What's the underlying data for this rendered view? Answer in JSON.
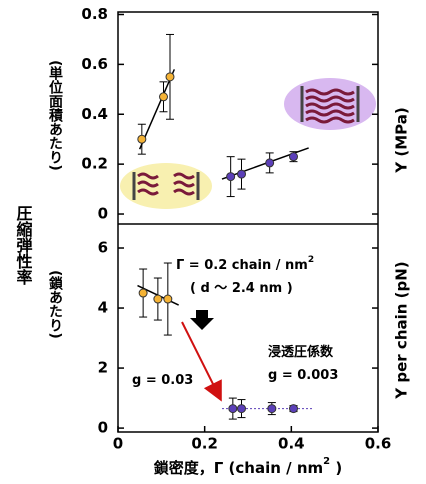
{
  "shared_ylabel": "圧縮弾性率",
  "chart_data": [
    {
      "type": "scatter",
      "ylabel": "(単位面積あたり)",
      "ylabel_right": "Y (MPa)",
      "xlim": [
        0,
        0.6
      ],
      "ylim": [
        -0.04,
        0.81
      ],
      "yticks": [
        0,
        0.2,
        0.4,
        0.6,
        0.8
      ],
      "series": [
        {
          "color": "#f5b335",
          "x": [
            0.055,
            0.105,
            0.12
          ],
          "values": [
            0.3,
            0.47,
            0.55
          ],
          "errors": [
            0.06,
            0.06,
            0.17
          ]
        },
        {
          "color": "#5b3fb8",
          "x": [
            0.26,
            0.285,
            0.35,
            0.405
          ],
          "values": [
            0.15,
            0.16,
            0.205,
            0.23
          ],
          "errors": [
            0.08,
            0.06,
            0.04,
            0.02
          ]
        }
      ],
      "fits": [
        {
          "color": "#000000",
          "dashed": false,
          "x": [
            0.05,
            0.13
          ],
          "values": [
            0.26,
            0.58
          ]
        },
        {
          "color": "#000000",
          "dashed": false,
          "x": [
            0.24,
            0.44
          ],
          "values": [
            0.14,
            0.265
          ]
        }
      ]
    },
    {
      "type": "scatter",
      "ylabel": "(鎖あたり)",
      "ylabel_right": "Y per chain (pN)",
      "xlabel": "鎖密度，Γ (chain / nm",
      "xlabel_sup": "2",
      "xlabel_end": " )",
      "xlim": [
        0,
        0.6
      ],
      "ylim": [
        -0.13,
        6.8
      ],
      "xticks": [
        0,
        0.2,
        0.4,
        0.6
      ],
      "yticks": [
        0,
        2,
        4,
        6
      ],
      "series": [
        {
          "color": "#f5b335",
          "x": [
            0.058,
            0.092,
            0.115
          ],
          "values": [
            4.5,
            4.3,
            4.3
          ],
          "errors": [
            0.8,
            0.7,
            1.2
          ]
        },
        {
          "color": "#5b3fb8",
          "x": [
            0.265,
            0.285,
            0.355,
            0.405
          ],
          "values": [
            0.65,
            0.65,
            0.65,
            0.65
          ],
          "errors": [
            0.35,
            0.3,
            0.2,
            0.1
          ]
        }
      ],
      "fits": [
        {
          "color": "#000000",
          "dashed": false,
          "x": [
            0.045,
            0.14
          ],
          "values": [
            4.75,
            4.1
          ]
        },
        {
          "color": "#5b3fb8",
          "dashed": true,
          "x": [
            0.24,
            0.45
          ],
          "values": [
            0.65,
            0.65
          ]
        }
      ],
      "annotations": [
        {
          "text": "Γ = 0.2 chain / nm",
          "sup": "2",
          "color": "#000000"
        },
        {
          "text": "( d ～ 2.4 nm )",
          "color": "#000000"
        },
        {
          "text": "g = 0.03",
          "color": "#1e8a1e"
        },
        {
          "text": "浸透圧係数",
          "color": "#1e8a1e"
        },
        {
          "text": "g = 0.003",
          "color": "#1e8a1e"
        }
      ]
    }
  ]
}
